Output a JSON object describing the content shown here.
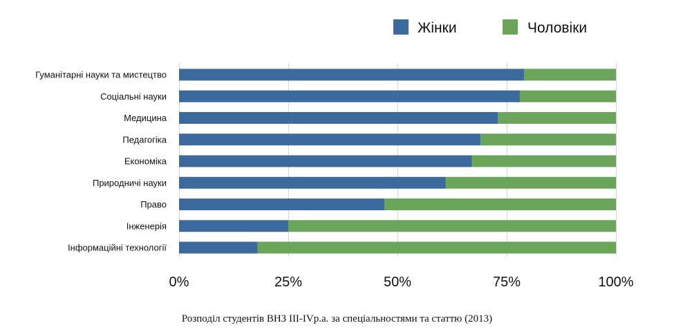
{
  "chart_data": {
    "type": "bar",
    "orientation": "horizontal",
    "stacked": "percent",
    "categories": [
      "Гуманітарні науки та мистецтво",
      "Соціальні науки",
      "Медицина",
      "Педагогіка",
      "Економіка",
      "Природничі науки",
      "Право",
      "Інженерія",
      "Інформаційні технології"
    ],
    "series": [
      {
        "name": "Жінки",
        "color": "#3d6a9e",
        "values": [
          79,
          78,
          73,
          69,
          67,
          61,
          47,
          25,
          18
        ]
      },
      {
        "name": "Чоловіки",
        "color": "#6aa55a",
        "values": [
          21,
          22,
          27,
          31,
          33,
          39,
          53,
          75,
          82
        ]
      }
    ],
    "xlim": [
      0,
      100
    ],
    "x_ticks": [
      "0%",
      "25%",
      "50%",
      "75%",
      "100%"
    ],
    "legend_position": "top-right",
    "grid": true
  },
  "caption": "Розподіл студентів ВНЗ III-IVр.а. за спеціальностями та статтю (2013)"
}
